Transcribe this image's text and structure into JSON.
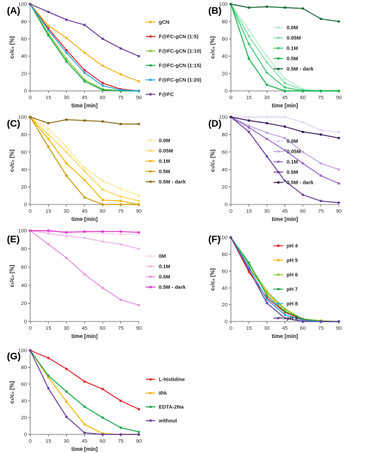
{
  "chart_data": [
    {
      "panel": "(A)",
      "type": "line",
      "xlabel": "time [min]",
      "ylabel": "cₜ/c₀ [%]",
      "xlim": [
        0,
        90
      ],
      "ylim": [
        0,
        100
      ],
      "xticks": [
        0,
        15,
        30,
        45,
        60,
        75,
        90
      ],
      "yticks": [
        0,
        20,
        40,
        60,
        80,
        100
      ],
      "grid": false,
      "legend_position": "right",
      "x": [
        0,
        15,
        30,
        45,
        60,
        75,
        90
      ],
      "series": [
        {
          "name": "gCN",
          "color": "#F5B21B",
          "values": [
            100,
            75,
            61,
            44,
            29,
            19,
            11
          ]
        },
        {
          "name": "F@FC-gCN (1:5)",
          "color": "#E8202A",
          "values": [
            100,
            72,
            47,
            24,
            9,
            2,
            0
          ]
        },
        {
          "name": "F@FC-gCN (1:10)",
          "color": "#8DC63F",
          "values": [
            100,
            66,
            37,
            13,
            2,
            0,
            0
          ]
        },
        {
          "name": "F@FC-gCN (1:15)",
          "color": "#1BA94C",
          "values": [
            100,
            64,
            34,
            11,
            1,
            0,
            0
          ]
        },
        {
          "name": "F@FC-gCN (1:20)",
          "color": "#29ABE2",
          "values": [
            100,
            70,
            44,
            21,
            6,
            1,
            0
          ]
        },
        {
          "name": "F@FC",
          "color": "#6A3D9A",
          "values": [
            100,
            91,
            82,
            76,
            60,
            49,
            40
          ]
        }
      ]
    },
    {
      "panel": "(B)",
      "type": "line",
      "xlabel": "time [min]",
      "ylabel": "cₜ/c₀ [%]",
      "xlim": [
        0,
        90
      ],
      "ylim": [
        0,
        100
      ],
      "xticks": [
        0,
        15,
        30,
        45,
        60,
        75,
        90
      ],
      "yticks": [
        0,
        20,
        40,
        60,
        80,
        100
      ],
      "grid": false,
      "legend_position": "right",
      "x": [
        0,
        15,
        30,
        45,
        60,
        75,
        90
      ],
      "series": [
        {
          "name": "0.0M",
          "color": "#B6EDCB",
          "values": [
            100,
            70,
            40,
            14,
            2,
            0,
            0
          ]
        },
        {
          "name": "0.05M",
          "color": "#7FDDA3",
          "values": [
            100,
            63,
            33,
            9,
            1,
            0,
            0
          ]
        },
        {
          "name": "0.1M",
          "color": "#3ACB72",
          "values": [
            100,
            54,
            21,
            4,
            0,
            0,
            0
          ]
        },
        {
          "name": "0.5M",
          "color": "#17B24E",
          "values": [
            100,
            37,
            7,
            0,
            0,
            0,
            0
          ]
        },
        {
          "name": "0.5M - dark",
          "color": "#1E6B3C",
          "values": [
            100,
            96,
            97,
            96,
            95,
            83,
            80
          ]
        }
      ]
    },
    {
      "panel": "(C)",
      "type": "line",
      "xlabel": "time [min]",
      "ylabel": "cₜ/c₀ [%]",
      "xlim": [
        0,
        90
      ],
      "ylim": [
        0,
        100
      ],
      "xticks": [
        0,
        15,
        30,
        45,
        60,
        75,
        90
      ],
      "yticks": [
        0,
        20,
        40,
        60,
        80,
        100
      ],
      "grid": false,
      "legend_position": "right",
      "x": [
        0,
        15,
        30,
        45,
        60,
        75,
        90
      ],
      "series": [
        {
          "name": "0.0M",
          "color": "#FCE79A",
          "values": [
            100,
            86,
            66,
            42,
            27,
            18,
            10
          ]
        },
        {
          "name": "0.05M",
          "color": "#F9D756",
          "values": [
            100,
            80,
            60,
            38,
            17,
            9,
            4
          ]
        },
        {
          "name": "0.1M",
          "color": "#F2B705",
          "values": [
            100,
            75,
            47,
            28,
            5,
            4,
            0
          ]
        },
        {
          "name": "0.5M",
          "color": "#C99A0B",
          "values": [
            100,
            66,
            33,
            8,
            0,
            0,
            0
          ]
        },
        {
          "name": "0.5M - dark",
          "color": "#8A6A12",
          "values": [
            100,
            93,
            97,
            96,
            95,
            92,
            92
          ]
        }
      ]
    },
    {
      "panel": "(D)",
      "type": "line",
      "xlabel": "time [min]",
      "ylabel": "cₜ/c₀ [%]",
      "xlim": [
        0,
        90
      ],
      "ylim": [
        0,
        100
      ],
      "xticks": [
        0,
        15,
        30,
        45,
        60,
        75,
        90
      ],
      "yticks": [
        0,
        20,
        40,
        60,
        80,
        100
      ],
      "grid": false,
      "legend_position": "right",
      "x": [
        0,
        15,
        30,
        45,
        60,
        75,
        90
      ],
      "series": [
        {
          "name": "0.0M",
          "color": "#E2D4F2",
          "values": [
            100,
            100,
            100,
            100,
            94,
            85,
            83
          ]
        },
        {
          "name": "0.05M",
          "color": "#BFA3E0",
          "values": [
            100,
            90,
            82,
            76,
            60,
            47,
            40
          ]
        },
        {
          "name": "0.1M",
          "color": "#9966CC",
          "values": [
            100,
            88,
            75,
            62,
            47,
            33,
            24
          ]
        },
        {
          "name": "0.5M",
          "color": "#6A3D9A",
          "values": [
            100,
            83,
            55,
            27,
            11,
            4,
            2
          ]
        },
        {
          "name": "0.5M - dark",
          "color": "#3B1F5C",
          "values": [
            100,
            96,
            93,
            89,
            83,
            80,
            76
          ]
        }
      ]
    },
    {
      "panel": "(E)",
      "type": "line",
      "xlabel": "time [min]",
      "ylabel": "cₜ/c₀ [%]",
      "xlim": [
        0,
        90
      ],
      "ylim": [
        0,
        100
      ],
      "xticks": [
        0,
        15,
        30,
        45,
        60,
        75,
        90
      ],
      "yticks": [
        0,
        20,
        40,
        60,
        80,
        100
      ],
      "grid": false,
      "legend_position": "right",
      "x": [
        0,
        15,
        30,
        45,
        60,
        75,
        90
      ],
      "series": [
        {
          "name": "0M",
          "color": "#F7D3F2",
          "values": [
            100,
            99,
            99,
            98,
            97,
            96,
            96
          ]
        },
        {
          "name": "0.1M",
          "color": "#F0B6E8",
          "values": [
            100,
            97,
            94,
            92,
            88,
            85,
            80
          ]
        },
        {
          "name": "0.5M",
          "color": "#E68FDC",
          "values": [
            100,
            85,
            70,
            52,
            37,
            24,
            18
          ]
        },
        {
          "name": "0.5M - dark",
          "color": "#E23BD0",
          "values": [
            100,
            100,
            98,
            99,
            99,
            99,
            98
          ]
        }
      ]
    },
    {
      "panel": "(F)",
      "type": "line",
      "xlabel": "time [min]",
      "ylabel": "cₜ/c₀ [%]",
      "xlim": [
        0,
        90
      ],
      "ylim": [
        0,
        100
      ],
      "xticks": [
        0,
        15,
        30,
        45,
        60,
        75,
        90
      ],
      "yticks": [
        0,
        20,
        40,
        60,
        80,
        100
      ],
      "grid": false,
      "legend_position": "right",
      "x": [
        0,
        15,
        30,
        45,
        60,
        75,
        90
      ],
      "series": [
        {
          "name": "pH 4",
          "color": "#E8202A",
          "values": [
            100,
            59,
            28,
            11,
            2,
            0,
            0
          ]
        },
        {
          "name": "pH 5",
          "color": "#F2B705",
          "values": [
            100,
            65,
            34,
            14,
            3,
            1,
            0
          ]
        },
        {
          "name": "pH 6",
          "color": "#8DC63F",
          "values": [
            100,
            68,
            36,
            15,
            3,
            1,
            0
          ]
        },
        {
          "name": "pH 7",
          "color": "#1BA94C",
          "values": [
            100,
            70,
            31,
            12,
            3,
            0,
            0
          ]
        },
        {
          "name": "pH 8",
          "color": "#29ABE2",
          "values": [
            100,
            65,
            26,
            8,
            1,
            0,
            0
          ]
        },
        {
          "name": "pH 9",
          "color": "#6A3D9A",
          "values": [
            100,
            62,
            22,
            4,
            0,
            0,
            0
          ]
        }
      ]
    },
    {
      "panel": "(G)",
      "type": "line",
      "xlabel": "time [min]",
      "ylabel": "cₜ/c₀ [%]",
      "xlim": [
        0,
        90
      ],
      "ylim": [
        0,
        100
      ],
      "xticks": [
        0,
        15,
        30,
        45,
        60,
        75,
        90
      ],
      "yticks": [
        0,
        20,
        40,
        60,
        80,
        100
      ],
      "grid": false,
      "legend_position": "right",
      "x": [
        0,
        15,
        30,
        45,
        60,
        75,
        90
      ],
      "series": [
        {
          "name": "L-histidine",
          "color": "#E8202A",
          "values": [
            100,
            91,
            78,
            63,
            54,
            40,
            30
          ]
        },
        {
          "name": "IPA",
          "color": "#F2B705",
          "values": [
            100,
            68,
            39,
            12,
            1,
            0,
            0
          ]
        },
        {
          "name": "EDTA-2Na",
          "color": "#1BA94C",
          "values": [
            100,
            70,
            51,
            33,
            20,
            8,
            3
          ]
        },
        {
          "name": "without",
          "color": "#6A3D9A",
          "values": [
            100,
            55,
            21,
            2,
            0,
            0,
            0
          ]
        }
      ]
    }
  ]
}
